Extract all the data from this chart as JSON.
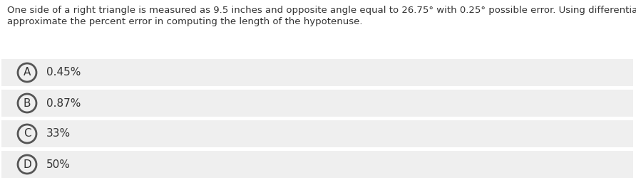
{
  "question_line1": "One side of a right triangle is measured as 9.5 inches and opposite angle equal to 26.75° with 0.25° possible error. Using differentials,",
  "question_line2": "approximate the percent error in computing the length of the hypotenuse.",
  "options": [
    {
      "label": "A",
      "text": "0.45%"
    },
    {
      "label": "B",
      "text": "0.87%"
    },
    {
      "label": "C",
      "text": "33%"
    },
    {
      "label": "D",
      "text": "50%"
    }
  ],
  "bg_color": "#ffffff",
  "option_bg_color": "#efefef",
  "text_color": "#333333",
  "circle_edge_color": "#555555",
  "question_fontsize": 9.5,
  "option_fontsize": 11.0,
  "label_fontsize": 11.0,
  "fig_width": 8.92,
  "fig_height": 2.6,
  "dpi": 100
}
